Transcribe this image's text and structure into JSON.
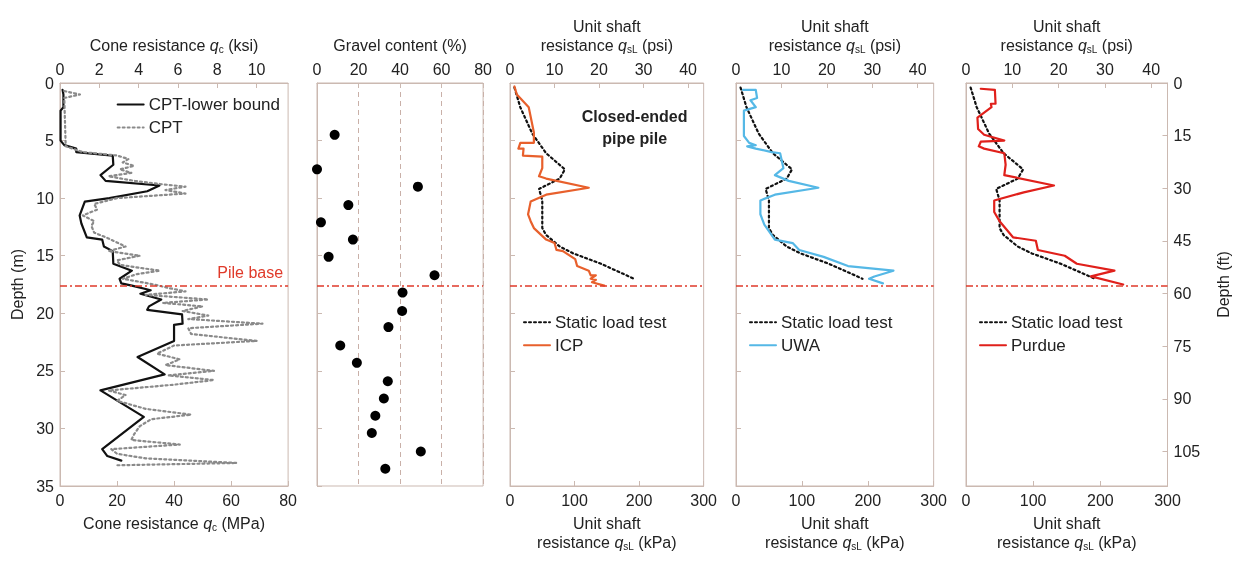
{
  "chart_data": [
    {
      "type": "line",
      "xlabel": "Cone resistance q$_{c}$ (MPa)",
      "x2label": "Cone resistance q$_{c}$ (ksi)",
      "ylabel": "Depth (m)",
      "xlim": [
        0,
        80
      ],
      "xticks": [
        0,
        20,
        40,
        60,
        80
      ],
      "x2lim": [
        0,
        11.603
      ],
      "x2ticks": [
        0,
        2,
        4,
        6,
        8,
        10
      ],
      "ylim": [
        35,
        0
      ],
      "yticks": [
        0,
        5,
        10,
        15,
        20,
        25,
        30,
        35
      ],
      "legend": "top right",
      "series": [
        {
          "name": "CPT-lower bound",
          "color": "#111111",
          "line_style": "solid",
          "x": [
            0.9,
            1.2,
            1.2,
            0.2,
            0.2,
            1.5,
            5.7,
            5.7,
            18.5,
            18.7,
            14.2,
            16,
            34.9,
            30.6,
            17.3,
            8.7,
            6.9,
            7.5,
            9.4,
            14.8,
            15.4,
            18.5,
            18.7,
            25.2,
            20.9,
            21.5,
            25.2,
            31.8,
            28.2,
            35.5,
            31.2,
            30.6,
            42.8,
            43,
            40,
            40,
            27.2,
            36.7,
            14.2,
            29.4,
            14.8,
            16.6,
            21.5
          ],
          "values": [
            0.6,
            1.0,
            2.1,
            2.4,
            5.0,
            5.4,
            5.7,
            6.0,
            6.3,
            7.1,
            8.0,
            8.5,
            8.9,
            9.4,
            10.0,
            10.3,
            11.5,
            12.2,
            13.4,
            13.6,
            14.2,
            14.6,
            15.7,
            16.3,
            17.0,
            17.4,
            17.6,
            18.0,
            18.3,
            18.8,
            19.4,
            19.7,
            20.1,
            20.9,
            21.0,
            22.4,
            23.8,
            25.3,
            26.7,
            29.0,
            31.8,
            32.4,
            32.8
          ]
        },
        {
          "name": "CPT",
          "color": "#8a8a8a",
          "line_style": "dotted",
          "x": [
            1.5,
            7,
            1.5,
            2,
            8,
            20,
            24,
            22,
            26,
            21,
            25,
            17,
            26,
            36,
            44,
            37,
            44,
            20,
            12,
            13,
            8,
            12,
            11,
            12,
            17,
            23,
            17,
            28,
            20,
            21,
            35,
            27,
            22,
            33,
            38,
            44,
            30,
            52,
            36,
            50,
            43,
            52,
            45,
            71,
            45,
            46,
            69,
            40,
            34,
            42,
            37,
            54,
            38,
            54,
            40,
            17,
            23,
            20,
            30,
            46,
            32,
            28,
            26,
            25,
            42,
            18,
            20,
            30,
            62,
            20
          ],
          "values": [
            0.7,
            1.0,
            1.3,
            5.5,
            6.0,
            6.3,
            6.6,
            6.9,
            7.2,
            7.5,
            7.8,
            8.1,
            8.5,
            8.8,
            9.0,
            9.3,
            9.6,
            10.0,
            10.5,
            11.0,
            11.5,
            12.0,
            12.4,
            13.0,
            13.5,
            14.2,
            14.6,
            15.0,
            15.4,
            15.8,
            16.3,
            16.6,
            17.0,
            17.5,
            17.8,
            18.1,
            18.4,
            18.8,
            19.1,
            19.4,
            19.8,
            20.2,
            20.5,
            20.9,
            21.3,
            21.8,
            22.4,
            22.8,
            23.5,
            24.0,
            24.5,
            25.0,
            25.4,
            25.8,
            26.2,
            26.7,
            27.1,
            27.6,
            28.3,
            28.8,
            29.2,
            29.8,
            30.5,
            31.0,
            31.4,
            31.8,
            32.2,
            32.6,
            33.0,
            33.2
          ]
        }
      ],
      "ref_lines": [
        {
          "axis": "y",
          "value": 17.6,
          "label": "Pile base",
          "color": "#e03a2a"
        }
      ]
    },
    {
      "type": "scatter",
      "xlabel": "Gravel content (%)",
      "xlim": [
        0,
        80
      ],
      "xticks": [
        0,
        20,
        40,
        60,
        80
      ],
      "ylim": [
        35,
        0
      ],
      "yticks": [
        0,
        5,
        10,
        15,
        20,
        25,
        30,
        35
      ],
      "tick_labels": "x",
      "grid": "x",
      "marker": "circle",
      "legend": false,
      "series": [
        {
          "color": "#000000",
          "x": [
            8.5,
            0,
            48.6,
            15.1,
            1.9,
            17.3,
            5.6,
            56.6,
            41.2,
            41,
            34.4,
            11.2,
            19.2,
            34.1,
            32.2,
            28.1,
            26.4,
            50,
            32.9
          ],
          "values": [
            4.5,
            7.5,
            9.0,
            10.6,
            12.1,
            13.6,
            15.1,
            16.7,
            18.2,
            19.8,
            21.2,
            22.8,
            24.3,
            25.9,
            27.4,
            28.9,
            30.4,
            32.0,
            33.5
          ]
        }
      ],
      "ref_lines": [
        {
          "axis": "y",
          "value": 17.6,
          "color": "#e03a2a"
        }
      ]
    },
    {
      "type": "line",
      "xlabel": "Unit shaft resistance q$_{sL}$ (kPa)",
      "x2label": "Unit shaft resistance q$_{sL}$ (psi)",
      "xlim": [
        0,
        300
      ],
      "xticks": [
        0,
        100,
        200,
        300
      ],
      "x2lim": [
        0,
        43.511
      ],
      "x2ticks": [
        0,
        10,
        20,
        30,
        40
      ],
      "ylim": [
        35,
        0
      ],
      "yticks": [
        0,
        5,
        10,
        15,
        20,
        25,
        30,
        35
      ],
      "tick_labels": "x",
      "legend": "left",
      "annotations": [
        "Closed-ended pipe pile"
      ],
      "series": [
        {
          "name": "Static load test",
          "color": "#111111",
          "line_style": "dotted",
          "x": [
            6.9,
            15.9,
            34.5,
            56,
            85,
            77,
            45,
            50,
            50,
            56,
            77,
            98,
            141,
            192
          ],
          "values": [
            0.4,
            2.1,
            4.4,
            6.1,
            7.5,
            8.3,
            9.2,
            10.2,
            12.6,
            13.2,
            14.2,
            14.8,
            15.7,
            17.0
          ]
        },
        {
          "name": "ICP",
          "color": "#e8602c",
          "line_style": "solid",
          "x": [
            6.9,
            10.6,
            29,
            37,
            37,
            16,
            13,
            21,
            20,
            50,
            50,
            45,
            56,
            122,
            56,
            32,
            28,
            32,
            37,
            56,
            69,
            72,
            82,
            101,
            104,
            122,
            125,
            133,
            125,
            133,
            127,
            146
          ],
          "values": [
            0.3,
            1.0,
            2.1,
            4.3,
            5.2,
            5.2,
            5.7,
            5.7,
            6.3,
            6.4,
            7.4,
            8.1,
            8.3,
            9.1,
            9.7,
            10.3,
            11.4,
            12.0,
            12.6,
            13.6,
            13.9,
            14.5,
            14.6,
            15.3,
            15.9,
            16.3,
            16.7,
            16.7,
            17.0,
            17.1,
            17.3,
            17.6
          ]
        }
      ],
      "ref_lines": [
        {
          "axis": "y",
          "value": 17.6,
          "color": "#e03a2a"
        }
      ]
    },
    {
      "type": "line",
      "xlabel": "Unit shaft resistance q$_{sL}$ (kPa)",
      "x2label": "Unit shaft resistance q$_{sL}$ (psi)",
      "xlim": [
        0,
        300
      ],
      "xticks": [
        0,
        100,
        200,
        300
      ],
      "x2lim": [
        0,
        43.511
      ],
      "x2ticks": [
        0,
        10,
        20,
        30,
        40
      ],
      "ylim": [
        35,
        0
      ],
      "yticks": [
        0,
        5,
        10,
        15,
        20,
        25,
        30,
        35
      ],
      "tick_labels": "x",
      "legend": "left",
      "series": [
        {
          "name": "Static load test",
          "color": "#111111",
          "line_style": "dotted",
          "x": [
            6.9,
            15.9,
            34.5,
            56,
            85,
            77,
            45,
            50,
            50,
            56,
            77,
            98,
            141,
            192
          ],
          "values": [
            0.4,
            2.1,
            4.4,
            6.1,
            7.5,
            8.3,
            9.2,
            10.2,
            12.6,
            13.2,
            14.2,
            14.8,
            15.7,
            17.0
          ]
        },
        {
          "name": "UWA",
          "color": "#55b8e6",
          "line_style": "solid",
          "x": [
            10.6,
            30,
            32,
            22,
            30,
            12,
            12,
            20,
            30,
            17,
            30,
            54,
            67,
            72,
            59,
            80,
            125,
            59,
            37,
            37,
            43,
            59,
            86,
            96,
            133,
            170,
            239,
            210,
            202,
            223
          ],
          "values": [
            0.6,
            0.6,
            1.3,
            1.5,
            2.1,
            2.4,
            4.6,
            5.2,
            5.4,
            5.5,
            5.7,
            6.0,
            6.1,
            7.4,
            8.0,
            8.5,
            9.1,
            9.7,
            10.2,
            11.4,
            12.3,
            13.6,
            13.9,
            14.5,
            15.1,
            15.9,
            16.3,
            16.8,
            17.0,
            17.4
          ]
        }
      ],
      "ref_lines": [
        {
          "axis": "y",
          "value": 17.6,
          "color": "#e03a2a"
        }
      ]
    },
    {
      "type": "line",
      "xlabel": "Unit shaft resistance q$_{sL}$ (kPa)",
      "x2label": "Unit shaft resistance q$_{sL}$ (psi)",
      "y2label": "Depth (ft)",
      "xlim": [
        0,
        300
      ],
      "xticks": [
        0,
        100,
        200,
        300
      ],
      "x2lim": [
        0,
        43.511
      ],
      "x2ticks": [
        0,
        10,
        20,
        30,
        40
      ],
      "ylim": [
        35,
        0
      ],
      "y2lim": [
        114.83,
        0
      ],
      "y2ticks": [
        0,
        15,
        30,
        45,
        60,
        75,
        90,
        105
      ],
      "legend": "left",
      "series": [
        {
          "name": "Static load test",
          "color": "#111111",
          "line_style": "dotted",
          "x": [
            6.9,
            15.9,
            34.5,
            56,
            85,
            77,
            45,
            50,
            50,
            56,
            77,
            98,
            141,
            192
          ],
          "values": [
            0.4,
            2.1,
            4.4,
            6.1,
            7.5,
            8.3,
            9.2,
            10.2,
            12.6,
            13.2,
            14.2,
            14.8,
            15.7,
            17.0
          ]
        },
        {
          "name": "Purdue",
          "color": "#e0201b",
          "line_style": "solid",
          "x": [
            22,
            43,
            44,
            37,
            38,
            17,
            18,
            27,
            57,
            22,
            19,
            27,
            57,
            59,
            57,
            131,
            86,
            42,
            42,
            50,
            70,
            104,
            107,
            147,
            165,
            221,
            186,
            234
          ],
          "values": [
            0.5,
            0.6,
            1.8,
            1.8,
            2.1,
            3.0,
            4.0,
            4.5,
            5.0,
            5.1,
            5.5,
            5.7,
            6.1,
            7.1,
            8.0,
            8.9,
            9.5,
            10.2,
            11.2,
            12.0,
            13.4,
            13.7,
            14.5,
            15.0,
            15.7,
            16.3,
            16.8,
            17.5
          ]
        }
      ],
      "ref_lines": [
        {
          "axis": "y",
          "value": 17.6,
          "color": "#e03a2a"
        }
      ]
    }
  ]
}
